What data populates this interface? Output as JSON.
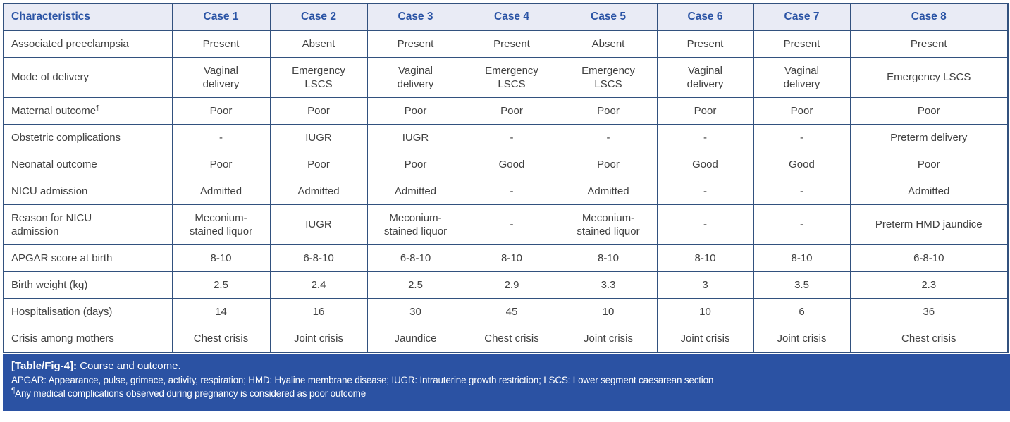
{
  "colors": {
    "table_border": "#32517e",
    "header_bg": "#e9ebf5",
    "header_text": "#2b54a5",
    "body_text": "#414141",
    "footer_bg": "#2b52a3",
    "footer_text": "#ffffff"
  },
  "table": {
    "columns": [
      "Characteristics",
      "Case 1",
      "Case 2",
      "Case 3",
      "Case 4",
      "Case 5",
      "Case 6",
      "Case 7",
      "Case 8"
    ],
    "rows": [
      {
        "label": "Associated preeclampsia",
        "values": [
          "Present",
          "Absent",
          "Present",
          "Present",
          "Absent",
          "Present",
          "Present",
          "Present"
        ]
      },
      {
        "label": "Mode of delivery",
        "values": [
          "Vaginal\ndelivery",
          "Emergency\nLSCS",
          "Vaginal\ndelivery",
          "Emergency\nLSCS",
          "Emergency\nLSCS",
          "Vaginal\ndelivery",
          "Vaginal\ndelivery",
          "Emergency LSCS"
        ]
      },
      {
        "label": "Maternal outcome",
        "label_sup": "¶",
        "values": [
          "Poor",
          "Poor",
          "Poor",
          "Poor",
          "Poor",
          "Poor",
          "Poor",
          "Poor"
        ]
      },
      {
        "label": "Obstetric complications",
        "values": [
          "-",
          "IUGR",
          "IUGR",
          "-",
          "-",
          "-",
          "-",
          "Preterm delivery"
        ]
      },
      {
        "label": "Neonatal outcome",
        "values": [
          "Poor",
          "Poor",
          "Poor",
          "Good",
          "Poor",
          "Good",
          "Good",
          "Poor"
        ]
      },
      {
        "label": "NICU admission",
        "values": [
          "Admitted",
          "Admitted",
          "Admitted",
          "-",
          "Admitted",
          "-",
          "-",
          "Admitted"
        ]
      },
      {
        "label": "Reason for NICU\nadmission",
        "values": [
          "Meconium-\nstained liquor",
          "IUGR",
          "Meconium-\nstained liquor",
          "-",
          "Meconium-\nstained liquor",
          "-",
          "-",
          "Preterm HMD jaundice"
        ]
      },
      {
        "label": "APGAR score at birth",
        "values": [
          "8-10",
          "6-8-10",
          "6-8-10",
          "8-10",
          "8-10",
          "8-10",
          "8-10",
          "6-8-10"
        ]
      },
      {
        "label": "Birth weight (kg)",
        "values": [
          "2.5",
          "2.4",
          "2.5",
          "2.9",
          "3.3",
          "3",
          "3.5",
          "2.3"
        ]
      },
      {
        "label": "Hospitalisation (days)",
        "values": [
          "14",
          "16",
          "30",
          "45",
          "10",
          "10",
          "6",
          "36"
        ]
      },
      {
        "label": "Crisis among mothers",
        "values": [
          "Chest crisis",
          "Joint crisis",
          "Jaundice",
          "Chest crisis",
          "Joint crisis",
          "Joint crisis",
          "Joint crisis",
          "Chest crisis"
        ]
      }
    ]
  },
  "footer": {
    "caption_label": "[Table/Fig-4]:",
    "caption_text": "Course and outcome.",
    "abbreviations": "APGAR: Appearance, pulse, grimace, activity, respiration; HMD: Hyaline membrane disease; IUGR: Intrauterine growth restriction; LSCS: Lower segment caesarean section",
    "footnote_marker": "¶",
    "footnote_text": "Any medical complications observed during pregnancy is considered as poor outcome"
  }
}
